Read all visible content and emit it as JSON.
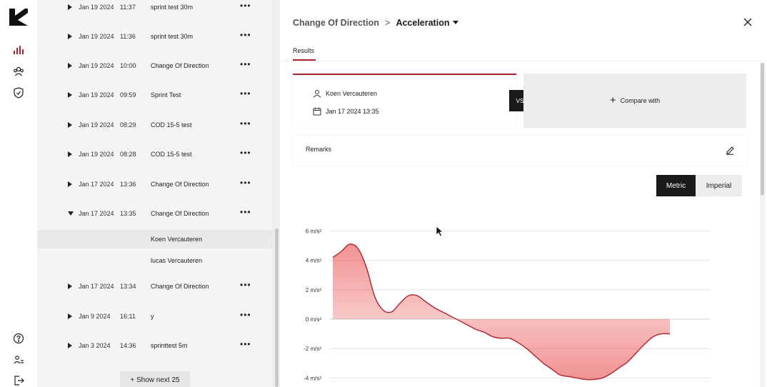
{
  "list": {
    "rows": [
      {
        "date": "Jan 19 2024",
        "time": "11:37",
        "name": "sprint test 30m",
        "expanded": false
      },
      {
        "date": "Jan 19 2024",
        "time": "11:36",
        "name": "sprint test 30m",
        "expanded": false
      },
      {
        "date": "Jan 19 2024",
        "time": "10:00",
        "name": "Change Of Direction",
        "expanded": false
      },
      {
        "date": "Jan 19 2024",
        "time": "09:59",
        "name": "Sprint Test",
        "expanded": false
      },
      {
        "date": "Jan 19 2024",
        "time": "08:29",
        "name": "COD 15-5 test",
        "expanded": false
      },
      {
        "date": "Jan 19 2024",
        "time": "08:28",
        "name": "COD 15-5 test",
        "expanded": false
      },
      {
        "date": "Jan 17 2024",
        "time": "13:36",
        "name": "Change Of Direction",
        "expanded": false
      },
      {
        "date": "Jan 17 2024",
        "time": "13:35",
        "name": "Change Of Direction",
        "expanded": true
      },
      {
        "date": "Jan 17 2024",
        "time": "13:34",
        "name": "Change Of Direction",
        "expanded": false
      },
      {
        "date": "Jan 9 2024",
        "time": "16:11",
        "name": "y",
        "expanded": false
      },
      {
        "date": "Jan 3 2024",
        "time": "14:36",
        "name": "sprinttest 5m",
        "expanded": false
      }
    ],
    "subrows": [
      "Koen Vercauteren",
      "lucas Vercauteren"
    ],
    "more_glyph": "•••",
    "show_next": "+ Show next 25"
  },
  "header": {
    "breadcrumb_parent": "Change Of Direction",
    "breadcrumb_current": "Acceleration",
    "separator": ">"
  },
  "tabs": {
    "results": "Results"
  },
  "card": {
    "athlete": "Koen Vercauteren",
    "datetime": "Jan 17 2024 13:35"
  },
  "vs_label": "VS",
  "compare_label": "Compare with",
  "remarks_label": "Remarks",
  "units": {
    "metric": "Metric",
    "imperial": "Imperial",
    "selected": "Metric"
  },
  "colors": {
    "accent": "#b0222a",
    "dark": "#1a1a1a"
  },
  "chart_data": {
    "type": "area",
    "y_ticks": [
      "6 m/s²",
      "4 m/s²",
      "2 m/s²",
      "0 m/s²",
      "-2 m/s²",
      "-4 m/s²"
    ],
    "y_tick_values": [
      6,
      4,
      2,
      0,
      -2,
      -4
    ],
    "ylim": [
      -4.2,
      6
    ],
    "grid": true,
    "series": [
      {
        "x": [
          0,
          1,
          2,
          3,
          4,
          5,
          6,
          7,
          8,
          9,
          10,
          11,
          12,
          13,
          14,
          15,
          16,
          17,
          18,
          19,
          20,
          21,
          22,
          23,
          24,
          25,
          26,
          27,
          28,
          29,
          30,
          31,
          32,
          33,
          34,
          35,
          36,
          37,
          38,
          39,
          40
        ],
        "values": [
          4.2,
          4.6,
          5.1,
          4.8,
          3.5,
          1.5,
          0.6,
          0.5,
          1.1,
          1.6,
          1.6,
          1.2,
          0.8,
          0.5,
          0.2,
          -0.1,
          -0.4,
          -0.7,
          -0.9,
          -1.2,
          -1.3,
          -1.3,
          -1.6,
          -2.0,
          -2.5,
          -3.0,
          -3.4,
          -3.8,
          -3.9,
          -4.0,
          -4.1,
          -4.1,
          -4.0,
          -3.7,
          -3.3,
          -2.9,
          -2.3,
          -1.7,
          -1.2,
          -1.0,
          -1.0
        ]
      }
    ]
  }
}
